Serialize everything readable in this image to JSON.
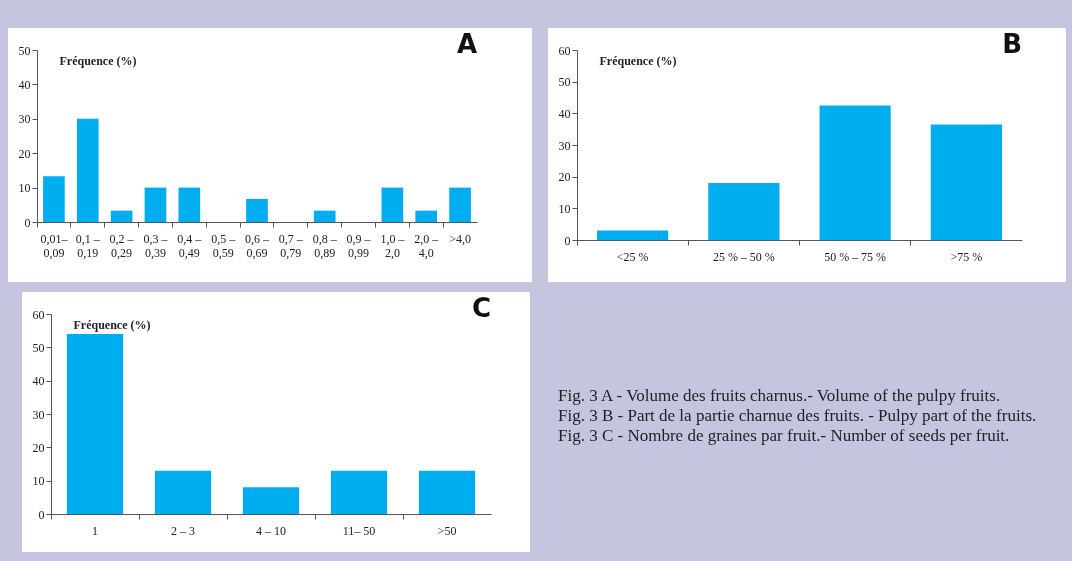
{
  "chart_data": [
    {
      "type": "bar",
      "title": "A",
      "ylabel": "Fréquence (%)",
      "categories": [
        "0,01–\n0,09",
        "0,1 –\n0,19",
        "0,2 –\n0,29",
        "0,3 –\n0,39",
        "0,4 –\n0,49",
        "0,5 –\n0,59",
        "0,6 –\n0,69",
        "0,7 –\n0,79",
        "0,8 –\n0,89",
        "0,9 –\n0,99",
        "1,0 –\n2,0",
        "2,0 –\n4,0",
        ">4,0"
      ],
      "values": [
        13.3,
        30,
        3.3,
        10,
        10,
        0,
        6.7,
        0,
        3.3,
        0,
        10,
        3.3,
        10
      ],
      "color": "#00aeef",
      "ylim": [
        0,
        50
      ],
      "yticks": [
        0,
        10,
        20,
        30,
        40,
        50
      ]
    },
    {
      "type": "bar",
      "title": "B",
      "ylabel": "Fréquence (%)",
      "categories": [
        "<25 %",
        "25 %  –  50 %",
        "50 %  –  75 %",
        ">75 %"
      ],
      "values": [
        3,
        18,
        42.5,
        36.5
      ],
      "color": "#00aeef",
      "ylim": [
        0,
        60
      ],
      "yticks": [
        0,
        10,
        20,
        30,
        40,
        50,
        60
      ]
    },
    {
      "type": "bar",
      "title": "C",
      "ylabel": "Fréquence (%)",
      "categories": [
        "1",
        "2 – 3",
        "4 – 10",
        "11– 50",
        ">50"
      ],
      "values": [
        54,
        13,
        8,
        13,
        13
      ],
      "color": "#00aeef",
      "ylim": [
        0,
        60
      ],
      "yticks": [
        0,
        10,
        20,
        30,
        40,
        50,
        60
      ]
    },
    {
      "type": "other",
      "annotations": [
        "Fig. 3 A - Volume des fruits charnus.- Volume of the pulpy fruits.",
        "Fig. 3 B - Part de la partie charnue des fruits. - Pulpy part of the fruits.",
        "Fig. 3 C - Nombre de graines par fruit.- Number of seeds per fruit."
      ]
    }
  ]
}
